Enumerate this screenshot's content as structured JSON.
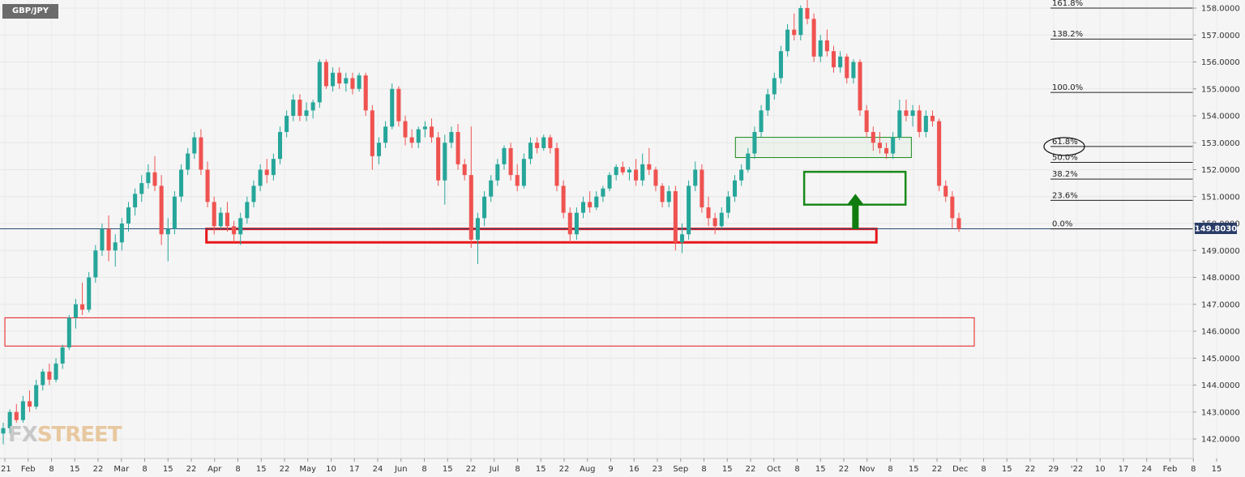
{
  "symbol": "GBP/JPY",
  "logo": {
    "fx": "FX",
    "street": "STREET"
  },
  "last_price_label": "149.8030",
  "colors": {
    "up": "#26a69a",
    "down": "#ef5350",
    "frame_red": "#e8171a",
    "frame_green": "#1a8a1a",
    "arrow": "#0f7c0f",
    "price_line": "#2a4a78"
  },
  "chart_data": {
    "type": "candlestick",
    "x_tick_labels": [
      "'21",
      "Feb",
      "8",
      "15",
      "22",
      "Mar",
      "8",
      "15",
      "22",
      "Apr",
      "8",
      "15",
      "22",
      "May",
      "10",
      "17",
      "24",
      "Jun",
      "8",
      "15",
      "22",
      "Jul",
      "8",
      "15",
      "22",
      "Aug",
      "9",
      "16",
      "23",
      "Sep",
      "8",
      "15",
      "22",
      "Oct",
      "8",
      "15",
      "22",
      "Nov",
      "8",
      "15",
      "22",
      "Dec",
      "8",
      "15",
      "22",
      "29",
      "'22",
      "10",
      "17",
      "24",
      "Feb",
      "8",
      "15"
    ],
    "y_tick_labels": [
      "158.0000",
      "157.0000",
      "156.0000",
      "155.0000",
      "154.0000",
      "153.0000",
      "152.0000",
      "151.0000",
      "150.0000",
      "149.0000",
      "148.0000",
      "147.0000",
      "146.0000",
      "145.0000",
      "144.0000",
      "143.0000",
      "142.0000"
    ],
    "y_range": [
      141.2,
      158.35
    ],
    "last_price": 149.803,
    "fib_levels": [
      {
        "label": "161.8%",
        "value": 158.0
      },
      {
        "label": "138.2%",
        "value": 156.85
      },
      {
        "label": "100.0%",
        "value": 154.87
      },
      {
        "label": "61.8%",
        "value": 152.86
      },
      {
        "label": "50.0%",
        "value": 152.27
      },
      {
        "label": "38.2%",
        "value": 151.65
      },
      {
        "label": "23.6%",
        "value": 150.86
      },
      {
        "label": "0.0%",
        "value": 149.8
      }
    ],
    "zones": [
      {
        "kind": "red",
        "x_from": 8.65,
        "x_to": 37.4,
        "y_from": 149.3,
        "y_to": 149.8
      },
      {
        "kind": "red_thin",
        "x_from": 0,
        "x_to": 41.6,
        "y_from": 145.45,
        "y_to": 146.5
      },
      {
        "kind": "green_thin",
        "x_from": 31.35,
        "x_to": 38.9,
        "y_from": 152.45,
        "y_to": 153.2
      },
      {
        "kind": "green",
        "x_from": 34.3,
        "x_to": 38.65,
        "y_from": 150.7,
        "y_to": 151.92
      }
    ],
    "arrow": {
      "x": 36.5,
      "y_from": 149.8,
      "y_to": 151.1
    },
    "ohlc": [
      [
        142.2,
        142.6,
        141.8,
        142.4
      ],
      [
        142.4,
        143.1,
        142.2,
        143.0
      ],
      [
        143.0,
        143.3,
        142.6,
        142.7
      ],
      [
        142.7,
        143.6,
        142.6,
        143.4
      ],
      [
        143.4,
        143.8,
        143.0,
        143.2
      ],
      [
        143.2,
        144.2,
        143.1,
        144.0
      ],
      [
        144.0,
        144.6,
        143.8,
        144.5
      ],
      [
        144.5,
        144.8,
        144.0,
        144.2
      ],
      [
        144.2,
        145.0,
        144.1,
        144.8
      ],
      [
        144.8,
        145.5,
        144.6,
        145.4
      ],
      [
        145.4,
        146.6,
        145.3,
        146.5
      ],
      [
        146.5,
        147.2,
        146.1,
        147.0
      ],
      [
        147.0,
        147.8,
        146.6,
        146.8
      ],
      [
        146.8,
        148.2,
        146.7,
        148.0
      ],
      [
        148.0,
        149.2,
        147.8,
        149.0
      ],
      [
        149.0,
        150.0,
        148.8,
        149.8
      ],
      [
        149.8,
        150.3,
        148.6,
        149.0
      ],
      [
        149.0,
        149.6,
        148.4,
        149.3
      ],
      [
        149.3,
        150.2,
        149.0,
        150.0
      ],
      [
        150.0,
        150.8,
        149.7,
        150.6
      ],
      [
        150.6,
        151.3,
        150.3,
        151.1
      ],
      [
        151.1,
        151.8,
        150.8,
        151.5
      ],
      [
        151.5,
        152.2,
        151.3,
        151.9
      ],
      [
        151.9,
        152.5,
        151.2,
        151.4
      ],
      [
        151.4,
        151.8,
        149.2,
        149.6
      ],
      [
        149.6,
        150.2,
        148.6,
        149.8
      ],
      [
        149.8,
        151.2,
        149.6,
        151.0
      ],
      [
        151.0,
        152.2,
        150.8,
        152.0
      ],
      [
        152.0,
        152.8,
        151.8,
        152.6
      ],
      [
        152.6,
        153.4,
        152.4,
        153.2
      ],
      [
        153.2,
        153.5,
        151.8,
        152.0
      ],
      [
        152.0,
        152.3,
        150.6,
        150.8
      ],
      [
        150.8,
        151.0,
        149.6,
        149.9
      ],
      [
        149.9,
        150.6,
        149.8,
        150.4
      ],
      [
        150.4,
        150.8,
        149.7,
        149.9
      ],
      [
        149.9,
        150.1,
        149.3,
        149.6
      ],
      [
        149.6,
        150.4,
        149.2,
        150.2
      ],
      [
        150.2,
        151.0,
        150.0,
        150.8
      ],
      [
        150.8,
        151.6,
        150.6,
        151.4
      ],
      [
        151.4,
        152.2,
        151.2,
        152.0
      ],
      [
        152.0,
        152.4,
        151.5,
        151.8
      ],
      [
        151.8,
        152.6,
        151.6,
        152.4
      ],
      [
        152.4,
        153.6,
        152.2,
        153.4
      ],
      [
        153.4,
        154.2,
        153.2,
        154.0
      ],
      [
        154.0,
        154.8,
        153.8,
        154.6
      ],
      [
        154.6,
        154.8,
        153.8,
        154.0
      ],
      [
        154.0,
        154.5,
        153.8,
        154.2
      ],
      [
        154.2,
        154.6,
        153.9,
        154.5
      ],
      [
        154.5,
        156.1,
        154.3,
        156.0
      ],
      [
        156.0,
        156.1,
        155.0,
        155.1
      ],
      [
        155.1,
        155.8,
        154.9,
        155.6
      ],
      [
        155.6,
        155.8,
        155.0,
        155.2
      ],
      [
        155.2,
        155.6,
        154.9,
        155.4
      ],
      [
        155.4,
        155.6,
        154.8,
        155.0
      ],
      [
        155.0,
        155.6,
        154.9,
        155.5
      ],
      [
        155.5,
        155.6,
        154.0,
        154.2
      ],
      [
        154.2,
        154.4,
        152.0,
        152.5
      ],
      [
        152.5,
        153.2,
        152.2,
        153.0
      ],
      [
        153.0,
        153.8,
        152.8,
        153.6
      ],
      [
        153.6,
        155.2,
        153.5,
        155.0
      ],
      [
        155.0,
        155.1,
        153.6,
        153.8
      ],
      [
        153.8,
        154.0,
        152.9,
        153.2
      ],
      [
        153.2,
        153.5,
        152.8,
        153.0
      ],
      [
        153.0,
        153.6,
        152.8,
        153.5
      ],
      [
        153.5,
        153.8,
        153.2,
        153.6
      ],
      [
        153.6,
        153.9,
        153.0,
        153.2
      ],
      [
        153.2,
        153.4,
        151.4,
        151.6
      ],
      [
        151.6,
        153.3,
        150.7,
        153.0
      ],
      [
        153.0,
        153.6,
        152.8,
        153.4
      ],
      [
        153.4,
        153.7,
        152.0,
        152.2
      ],
      [
        152.2,
        152.4,
        151.6,
        151.8
      ],
      [
        151.8,
        153.6,
        149.1,
        149.4
      ],
      [
        149.4,
        150.4,
        148.5,
        150.2
      ],
      [
        150.2,
        151.2,
        149.9,
        151.0
      ],
      [
        151.0,
        151.8,
        150.8,
        151.6
      ],
      [
        151.6,
        152.4,
        151.4,
        152.2
      ],
      [
        152.2,
        152.9,
        152.0,
        152.8
      ],
      [
        152.8,
        153.0,
        151.6,
        151.8
      ],
      [
        151.8,
        152.2,
        151.2,
        151.4
      ],
      [
        151.4,
        152.6,
        151.3,
        152.4
      ],
      [
        152.4,
        153.2,
        152.2,
        153.0
      ],
      [
        153.0,
        153.2,
        152.6,
        152.8
      ],
      [
        152.8,
        153.3,
        152.7,
        153.2
      ],
      [
        153.2,
        153.3,
        152.6,
        152.8
      ],
      [
        152.8,
        153.0,
        151.2,
        151.4
      ],
      [
        151.4,
        151.6,
        150.2,
        150.4
      ],
      [
        150.4,
        150.6,
        149.3,
        149.6
      ],
      [
        149.6,
        150.6,
        149.4,
        150.4
      ],
      [
        150.4,
        151.0,
        150.2,
        150.8
      ],
      [
        150.8,
        151.2,
        150.4,
        150.6
      ],
      [
        150.6,
        151.2,
        150.5,
        151.0
      ],
      [
        151.0,
        151.4,
        150.8,
        151.3
      ],
      [
        151.3,
        151.9,
        151.2,
        151.8
      ],
      [
        151.8,
        152.2,
        151.6,
        152.1
      ],
      [
        152.1,
        152.3,
        151.8,
        151.9
      ],
      [
        151.9,
        152.1,
        151.6,
        152.0
      ],
      [
        152.0,
        152.4,
        151.4,
        151.6
      ],
      [
        151.6,
        152.6,
        151.4,
        152.2
      ],
      [
        152.2,
        152.8,
        151.8,
        152.0
      ],
      [
        152.0,
        152.1,
        151.2,
        151.4
      ],
      [
        151.4,
        151.5,
        150.6,
        150.8
      ],
      [
        150.8,
        151.4,
        150.6,
        151.2
      ],
      [
        151.2,
        151.4,
        149.0,
        149.3
      ],
      [
        149.3,
        150.0,
        148.9,
        149.6
      ],
      [
        149.6,
        151.6,
        149.4,
        151.4
      ],
      [
        151.4,
        152.3,
        151.2,
        152.0
      ],
      [
        152.0,
        152.2,
        150.4,
        150.6
      ],
      [
        150.6,
        151.0,
        149.9,
        150.2
      ],
      [
        150.2,
        150.4,
        149.6,
        149.9
      ],
      [
        149.9,
        150.6,
        149.8,
        150.4
      ],
      [
        150.4,
        151.2,
        150.2,
        151.0
      ],
      [
        151.0,
        151.8,
        150.8,
        151.6
      ],
      [
        151.6,
        152.2,
        151.4,
        152.0
      ],
      [
        152.0,
        152.8,
        151.9,
        152.6
      ],
      [
        152.6,
        153.6,
        152.4,
        153.4
      ],
      [
        153.4,
        154.4,
        153.2,
        154.2
      ],
      [
        154.2,
        155.0,
        154.0,
        154.8
      ],
      [
        154.8,
        155.6,
        154.6,
        155.4
      ],
      [
        155.4,
        156.6,
        155.2,
        156.4
      ],
      [
        156.4,
        157.4,
        156.2,
        157.2
      ],
      [
        157.2,
        157.8,
        156.8,
        157.0
      ],
      [
        157.0,
        158.1,
        156.8,
        158.0
      ],
      [
        158.0,
        158.3,
        157.4,
        157.6
      ],
      [
        157.6,
        157.8,
        156.0,
        156.2
      ],
      [
        156.2,
        157.0,
        156.0,
        156.8
      ],
      [
        156.8,
        157.2,
        156.2,
        156.4
      ],
      [
        156.4,
        156.6,
        155.6,
        155.8
      ],
      [
        155.8,
        156.4,
        155.6,
        156.2
      ],
      [
        156.2,
        156.3,
        155.2,
        155.4
      ],
      [
        155.4,
        156.1,
        155.2,
        156.0
      ],
      [
        156.0,
        156.1,
        154.0,
        154.2
      ],
      [
        154.2,
        154.4,
        153.2,
        153.4
      ],
      [
        153.4,
        153.6,
        152.7,
        153.0
      ],
      [
        153.0,
        153.4,
        152.6,
        152.8
      ],
      [
        152.8,
        153.0,
        152.4,
        152.6
      ],
      [
        152.6,
        153.4,
        152.4,
        153.2
      ],
      [
        153.2,
        154.6,
        153.1,
        154.2
      ],
      [
        154.2,
        154.6,
        153.8,
        154.0
      ],
      [
        154.0,
        154.4,
        153.6,
        154.2
      ],
      [
        154.2,
        154.4,
        153.2,
        153.4
      ],
      [
        153.4,
        154.2,
        153.2,
        154.0
      ],
      [
        154.0,
        154.2,
        153.6,
        153.8
      ],
      [
        153.8,
        153.9,
        151.2,
        151.4
      ],
      [
        151.4,
        151.6,
        150.8,
        151.0
      ],
      [
        151.0,
        151.2,
        149.8,
        150.2
      ],
      [
        150.2,
        150.4,
        149.7,
        149.8
      ]
    ]
  }
}
